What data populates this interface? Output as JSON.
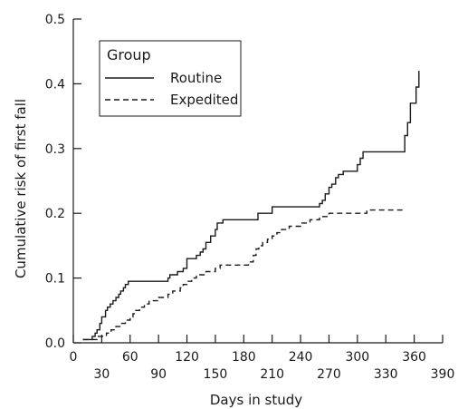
{
  "chart_data": {
    "type": "line",
    "title": "",
    "xlabel": "Days in study",
    "ylabel": "Cumulative risk of first fall",
    "xlim": [
      0,
      390
    ],
    "ylim": [
      0,
      0.5
    ],
    "x_ticks_major": [
      0,
      60,
      120,
      180,
      240,
      300,
      360
    ],
    "x_ticks_minor": [
      30,
      90,
      150,
      210,
      270,
      330,
      390
    ],
    "x_tick_labels_major": [
      "0",
      "60",
      "120",
      "180",
      "240",
      "300",
      "360"
    ],
    "x_tick_labels_minor": [
      "30",
      "90",
      "150",
      "210",
      "270",
      "330",
      "390"
    ],
    "y_ticks": [
      0.0,
      0.1,
      0.2,
      0.3,
      0.4,
      0.5
    ],
    "y_tick_labels": [
      "0.0",
      "0.1",
      "0.2",
      "0.3",
      "0.4",
      "0.5"
    ],
    "grid": false,
    "legend": {
      "title": "Group",
      "position": "top-left"
    },
    "step": true,
    "series": [
      {
        "name": "Routine",
        "style": "solid",
        "color": "#1a1a1a",
        "x": [
          10,
          20,
          23,
          25,
          28,
          30,
          34,
          36,
          39,
          42,
          45,
          48,
          50,
          53,
          55,
          58,
          100,
          102,
          110,
          116,
          120,
          125,
          130,
          134,
          137,
          140,
          145,
          150,
          152,
          155,
          158,
          160,
          195,
          210,
          260,
          263,
          266,
          270,
          273,
          277,
          280,
          285,
          290,
          300,
          303,
          306,
          350,
          353,
          356,
          359,
          362,
          365
        ],
        "y": [
          0.005,
          0.01,
          0.015,
          0.02,
          0.03,
          0.04,
          0.05,
          0.055,
          0.06,
          0.065,
          0.07,
          0.075,
          0.08,
          0.085,
          0.09,
          0.095,
          0.1,
          0.105,
          0.11,
          0.115,
          0.13,
          0.13,
          0.135,
          0.14,
          0.145,
          0.155,
          0.165,
          0.175,
          0.185,
          0.185,
          0.19,
          0.19,
          0.2,
          0.21,
          0.215,
          0.22,
          0.23,
          0.24,
          0.245,
          0.255,
          0.26,
          0.265,
          0.265,
          0.275,
          0.285,
          0.295,
          0.32,
          0.34,
          0.37,
          0.37,
          0.395,
          0.42
        ]
      },
      {
        "name": "Expedited",
        "style": "dashed",
        "color": "#1a1a1a",
        "x": [
          10,
          25,
          35,
          40,
          45,
          50,
          55,
          60,
          63,
          66,
          70,
          75,
          80,
          90,
          100,
          105,
          110,
          113,
          116,
          120,
          125,
          130,
          140,
          150,
          155,
          160,
          185,
          190,
          193,
          196,
          200,
          205,
          210,
          215,
          220,
          228,
          235,
          240,
          245,
          250,
          255,
          260,
          265,
          270,
          275,
          280,
          290,
          300,
          310,
          345,
          350
        ],
        "y": [
          0.005,
          0.01,
          0.015,
          0.02,
          0.025,
          0.03,
          0.035,
          0.04,
          0.045,
          0.05,
          0.055,
          0.06,
          0.065,
          0.07,
          0.075,
          0.08,
          0.08,
          0.085,
          0.09,
          0.095,
          0.1,
          0.105,
          0.11,
          0.115,
          0.12,
          0.12,
          0.125,
          0.135,
          0.145,
          0.15,
          0.155,
          0.16,
          0.165,
          0.17,
          0.175,
          0.18,
          0.18,
          0.185,
          0.185,
          0.19,
          0.19,
          0.195,
          0.195,
          0.2,
          0.2,
          0.2,
          0.2,
          0.2,
          0.205,
          0.205,
          0.205
        ]
      }
    ]
  }
}
